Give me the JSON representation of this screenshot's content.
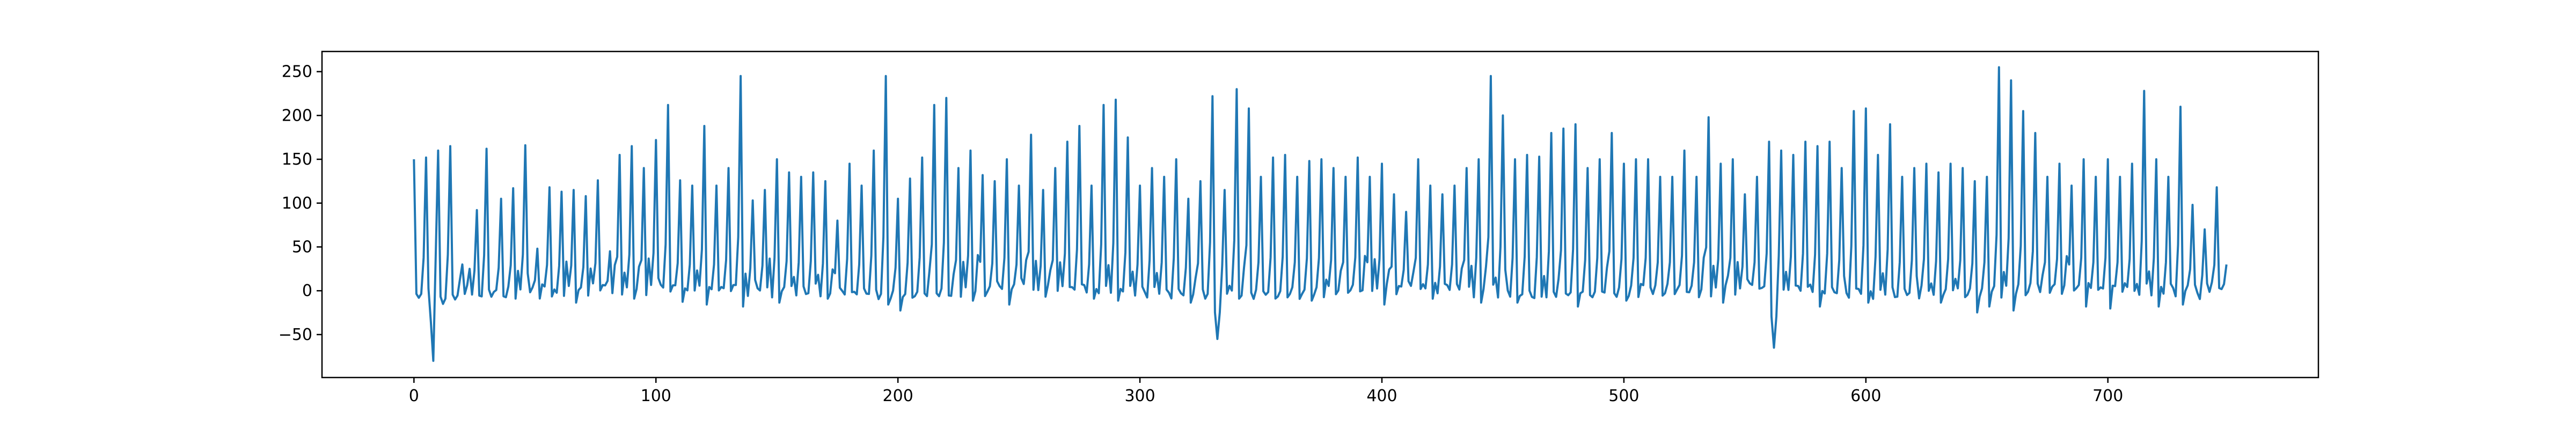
{
  "chart_data": {
    "type": "line",
    "title": "",
    "xlabel": "",
    "ylabel": "",
    "xlim": [
      -38,
      787
    ],
    "ylim": [
      -99,
      273
    ],
    "grid": false,
    "legend": "none",
    "x_ticks": [
      0,
      100,
      200,
      300,
      400,
      500,
      600,
      700
    ],
    "y_ticks": [
      -50,
      0,
      50,
      100,
      150,
      200,
      250
    ],
    "colors": {
      "line": "#1f77b4",
      "axes": "#000000",
      "background": "#ffffff"
    },
    "series": [
      {
        "x_start": 0,
        "x_step": 1,
        "n_points": 750,
        "peaks": [
          [
            0,
            150
          ],
          [
            5,
            152
          ],
          [
            10,
            160
          ],
          [
            15,
            165
          ],
          [
            20,
            30
          ],
          [
            23,
            25
          ],
          [
            26,
            92
          ],
          [
            30,
            162
          ],
          [
            36,
            105
          ],
          [
            41,
            117
          ],
          [
            46,
            166
          ],
          [
            51,
            48
          ],
          [
            56,
            118
          ],
          [
            61,
            113
          ],
          [
            66,
            115
          ],
          [
            71,
            108
          ],
          [
            76,
            126
          ],
          [
            81,
            45
          ],
          [
            85,
            155
          ],
          [
            90,
            165
          ],
          [
            95,
            140
          ],
          [
            100,
            172
          ],
          [
            105,
            212
          ],
          [
            110,
            126
          ],
          [
            115,
            120
          ],
          [
            120,
            188
          ],
          [
            125,
            120
          ],
          [
            130,
            140
          ],
          [
            135,
            245
          ],
          [
            140,
            103
          ],
          [
            145,
            115
          ],
          [
            150,
            150
          ],
          [
            155,
            135
          ],
          [
            160,
            130
          ],
          [
            165,
            135
          ],
          [
            170,
            125
          ],
          [
            175,
            80
          ],
          [
            180,
            145
          ],
          [
            185,
            120
          ],
          [
            190,
            160
          ],
          [
            195,
            245
          ],
          [
            200,
            105
          ],
          [
            205,
            128
          ],
          [
            210,
            152
          ],
          [
            215,
            212
          ],
          [
            220,
            220
          ],
          [
            225,
            140
          ],
          [
            230,
            160
          ],
          [
            235,
            132
          ],
          [
            240,
            125
          ],
          [
            245,
            150
          ],
          [
            250,
            120
          ],
          [
            255,
            178
          ],
          [
            260,
            115
          ],
          [
            265,
            140
          ],
          [
            270,
            170
          ],
          [
            275,
            188
          ],
          [
            280,
            120
          ],
          [
            285,
            212
          ],
          [
            290,
            218
          ],
          [
            295,
            175
          ],
          [
            300,
            120
          ],
          [
            305,
            140
          ],
          [
            310,
            130
          ],
          [
            315,
            150
          ],
          [
            320,
            105
          ],
          [
            325,
            125
          ],
          [
            330,
            222
          ],
          [
            335,
            115
          ],
          [
            340,
            230
          ],
          [
            345,
            208
          ],
          [
            350,
            130
          ],
          [
            355,
            152
          ],
          [
            360,
            155
          ],
          [
            365,
            130
          ],
          [
            370,
            148
          ],
          [
            375,
            150
          ],
          [
            380,
            140
          ],
          [
            385,
            130
          ],
          [
            390,
            152
          ],
          [
            395,
            130
          ],
          [
            400,
            145
          ],
          [
            405,
            110
          ],
          [
            410,
            90
          ],
          [
            415,
            150
          ],
          [
            420,
            120
          ],
          [
            425,
            110
          ],
          [
            430,
            120
          ],
          [
            435,
            140
          ],
          [
            440,
            150
          ],
          [
            445,
            245
          ],
          [
            450,
            200
          ],
          [
            455,
            150
          ],
          [
            460,
            155
          ],
          [
            465,
            153
          ],
          [
            470,
            180
          ],
          [
            475,
            185
          ],
          [
            480,
            190
          ],
          [
            485,
            140
          ],
          [
            490,
            150
          ],
          [
            495,
            180
          ],
          [
            500,
            145
          ],
          [
            505,
            150
          ],
          [
            510,
            150
          ],
          [
            515,
            130
          ],
          [
            520,
            130
          ],
          [
            525,
            160
          ],
          [
            530,
            130
          ],
          [
            535,
            198
          ],
          [
            540,
            145
          ],
          [
            545,
            150
          ],
          [
            550,
            110
          ],
          [
            555,
            130
          ],
          [
            560,
            170
          ],
          [
            565,
            160
          ],
          [
            570,
            155
          ],
          [
            575,
            170
          ],
          [
            580,
            165
          ],
          [
            585,
            170
          ],
          [
            590,
            140
          ],
          [
            595,
            205
          ],
          [
            600,
            208
          ],
          [
            605,
            155
          ],
          [
            610,
            190
          ],
          [
            615,
            130
          ],
          [
            620,
            140
          ],
          [
            625,
            145
          ],
          [
            630,
            135
          ],
          [
            635,
            145
          ],
          [
            640,
            140
          ],
          [
            645,
            125
          ],
          [
            650,
            130
          ],
          [
            655,
            255
          ],
          [
            660,
            240
          ],
          [
            665,
            205
          ],
          [
            670,
            180
          ],
          [
            675,
            130
          ],
          [
            680,
            145
          ],
          [
            685,
            120
          ],
          [
            690,
            150
          ],
          [
            695,
            130
          ],
          [
            700,
            150
          ],
          [
            705,
            130
          ],
          [
            710,
            145
          ],
          [
            715,
            228
          ],
          [
            720,
            150
          ],
          [
            725,
            130
          ],
          [
            730,
            210
          ],
          [
            735,
            98
          ],
          [
            740,
            70
          ],
          [
            745,
            118
          ],
          [
            749,
            30
          ]
        ],
        "troughs": [
          [
            2,
            -8
          ],
          [
            8,
            -80
          ],
          [
            12,
            -15
          ],
          [
            17,
            -10
          ],
          [
            22,
            -8
          ],
          [
            60,
            -5
          ],
          [
            66,
            -30
          ],
          [
            90,
            -20
          ],
          [
            110,
            -28
          ],
          [
            120,
            -35
          ],
          [
            135,
            -40
          ],
          [
            150,
            -30
          ],
          [
            170,
            -20
          ],
          [
            195,
            -35
          ],
          [
            200,
            -50
          ],
          [
            230,
            -25
          ],
          [
            245,
            -35
          ],
          [
            260,
            -15
          ],
          [
            280,
            -20
          ],
          [
            290,
            -25
          ],
          [
            320,
            -30
          ],
          [
            332,
            -55
          ],
          [
            340,
            -20
          ],
          [
            370,
            -25
          ],
          [
            400,
            -35
          ],
          [
            420,
            -20
          ],
          [
            440,
            -30
          ],
          [
            455,
            -30
          ],
          [
            465,
            -15
          ],
          [
            480,
            -40
          ],
          [
            500,
            -25
          ],
          [
            540,
            -30
          ],
          [
            562,
            -65
          ],
          [
            580,
            -40
          ],
          [
            600,
            -30
          ],
          [
            630,
            -30
          ],
          [
            645,
            -55
          ],
          [
            650,
            -40
          ],
          [
            660,
            -50
          ],
          [
            690,
            -40
          ],
          [
            700,
            -45
          ],
          [
            720,
            -40
          ],
          [
            730,
            -35
          ],
          [
            749,
            -25
          ]
        ]
      }
    ]
  }
}
